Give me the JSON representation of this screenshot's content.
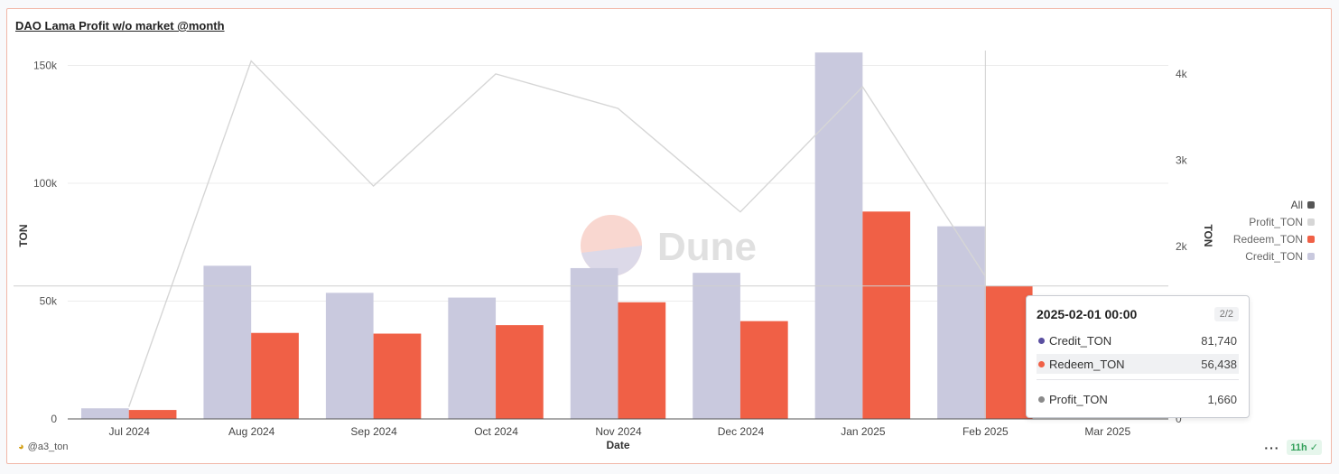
{
  "chart_data": {
    "type": "bar",
    "title": "DAO Lama Profit w/o market @month",
    "xlabel": "Date",
    "ylabel": "TON",
    "y2label": "TON",
    "categories": [
      "Jul 2024",
      "Aug 2024",
      "Sep 2024",
      "Oct 2024",
      "Nov 2024",
      "Dec 2024",
      "Jan 2025",
      "Feb 2025",
      "Mar 2025"
    ],
    "ylim": [
      0,
      150000
    ],
    "y2lim": [
      0,
      4000
    ],
    "yticks": [
      "0",
      "50k",
      "100k",
      "150k"
    ],
    "y2ticks": [
      "0",
      "1k",
      "2k",
      "3k",
      "4k"
    ],
    "series": [
      {
        "name": "Credit_TON",
        "axis": "left",
        "type": "bar",
        "color": "#c9c9de",
        "values": [
          4500,
          65000,
          53500,
          51500,
          64000,
          62000,
          155500,
          81740,
          null
        ]
      },
      {
        "name": "Redeem_TON",
        "axis": "left",
        "type": "bar",
        "color": "#f06046",
        "values": [
          3800,
          36500,
          36200,
          39800,
          49500,
          41500,
          88000,
          56438,
          null
        ]
      },
      {
        "name": "Profit_TON",
        "axis": "right",
        "type": "line",
        "color": "#d6d6d6",
        "values": [
          140,
          4150,
          2700,
          4000,
          3600,
          2400,
          3850,
          1660,
          null
        ]
      }
    ],
    "legend_position": "right",
    "grid": true
  },
  "legend": {
    "all_label": "All",
    "items": [
      {
        "label": "Profit_TON",
        "color": "#d6d6d6"
      },
      {
        "label": "Redeem_TON",
        "color": "#f06046"
      },
      {
        "label": "Credit_TON",
        "color": "#c9c9de"
      }
    ],
    "all_color": "#555555"
  },
  "tooltip": {
    "date": "2025-02-01 00:00",
    "page": "2/2",
    "rows": [
      {
        "name": "Credit_TON",
        "value": "81,740",
        "color": "#5a4fa0"
      },
      {
        "name": "Redeem_TON",
        "value": "56,438",
        "color": "#f06046"
      },
      {
        "name": "Profit_TON",
        "value": "1,660",
        "color": "#8a8a8a"
      }
    ]
  },
  "watermark": "Dune",
  "footer": {
    "author": "@a3_ton",
    "more": "···",
    "freshness": "11h"
  }
}
